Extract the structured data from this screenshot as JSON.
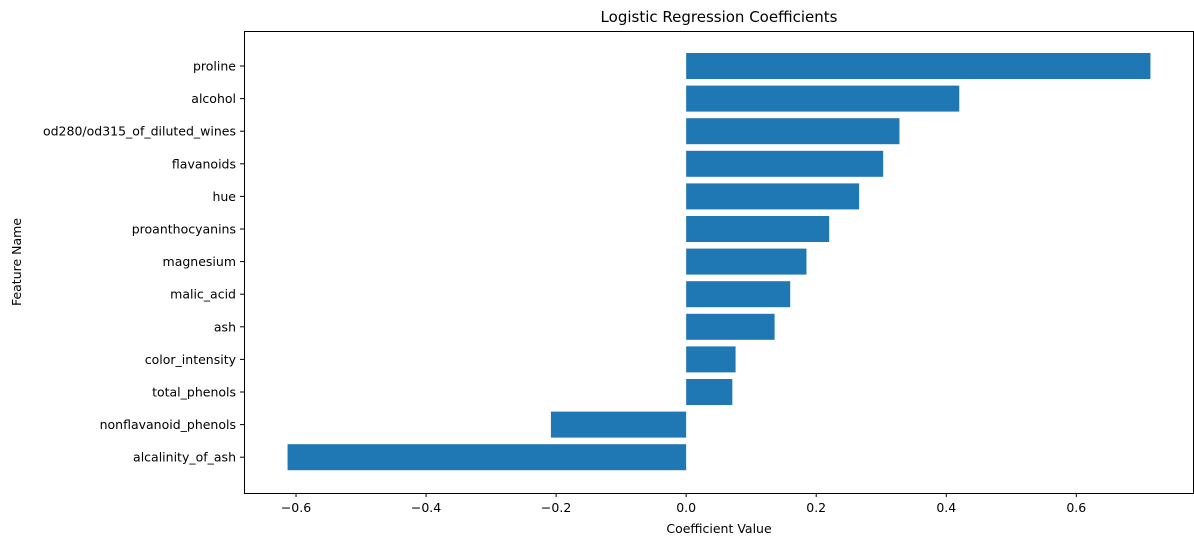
{
  "chart_data": {
    "type": "bar",
    "orientation": "horizontal",
    "title": "Logistic Regression Coefficients",
    "xlabel": "Coefficient Value",
    "ylabel": "Feature Name",
    "categories": [
      "proline",
      "alcohol",
      "od280/od315_of_diluted_wines",
      "flavanoids",
      "hue",
      "proanthocyanins",
      "magnesium",
      "malic_acid",
      "ash",
      "color_intensity",
      "total_phenols",
      "nonflavanoid_phenols",
      "alcalinity_of_ash"
    ],
    "values": [
      0.714,
      0.42,
      0.328,
      0.303,
      0.266,
      0.22,
      0.185,
      0.16,
      0.136,
      0.076,
      0.071,
      -0.208,
      -0.613
    ],
    "xlim": [
      -0.68,
      0.781
    ],
    "xticks": [
      -0.6,
      -0.4,
      -0.2,
      0.0,
      0.2,
      0.4,
      0.6
    ],
    "xtick_labels": [
      "−0.6",
      "−0.4",
      "−0.2",
      "0.0",
      "0.2",
      "0.4",
      "0.6"
    ],
    "grid": false,
    "legend": false,
    "bar_color": "#1f77b4"
  }
}
